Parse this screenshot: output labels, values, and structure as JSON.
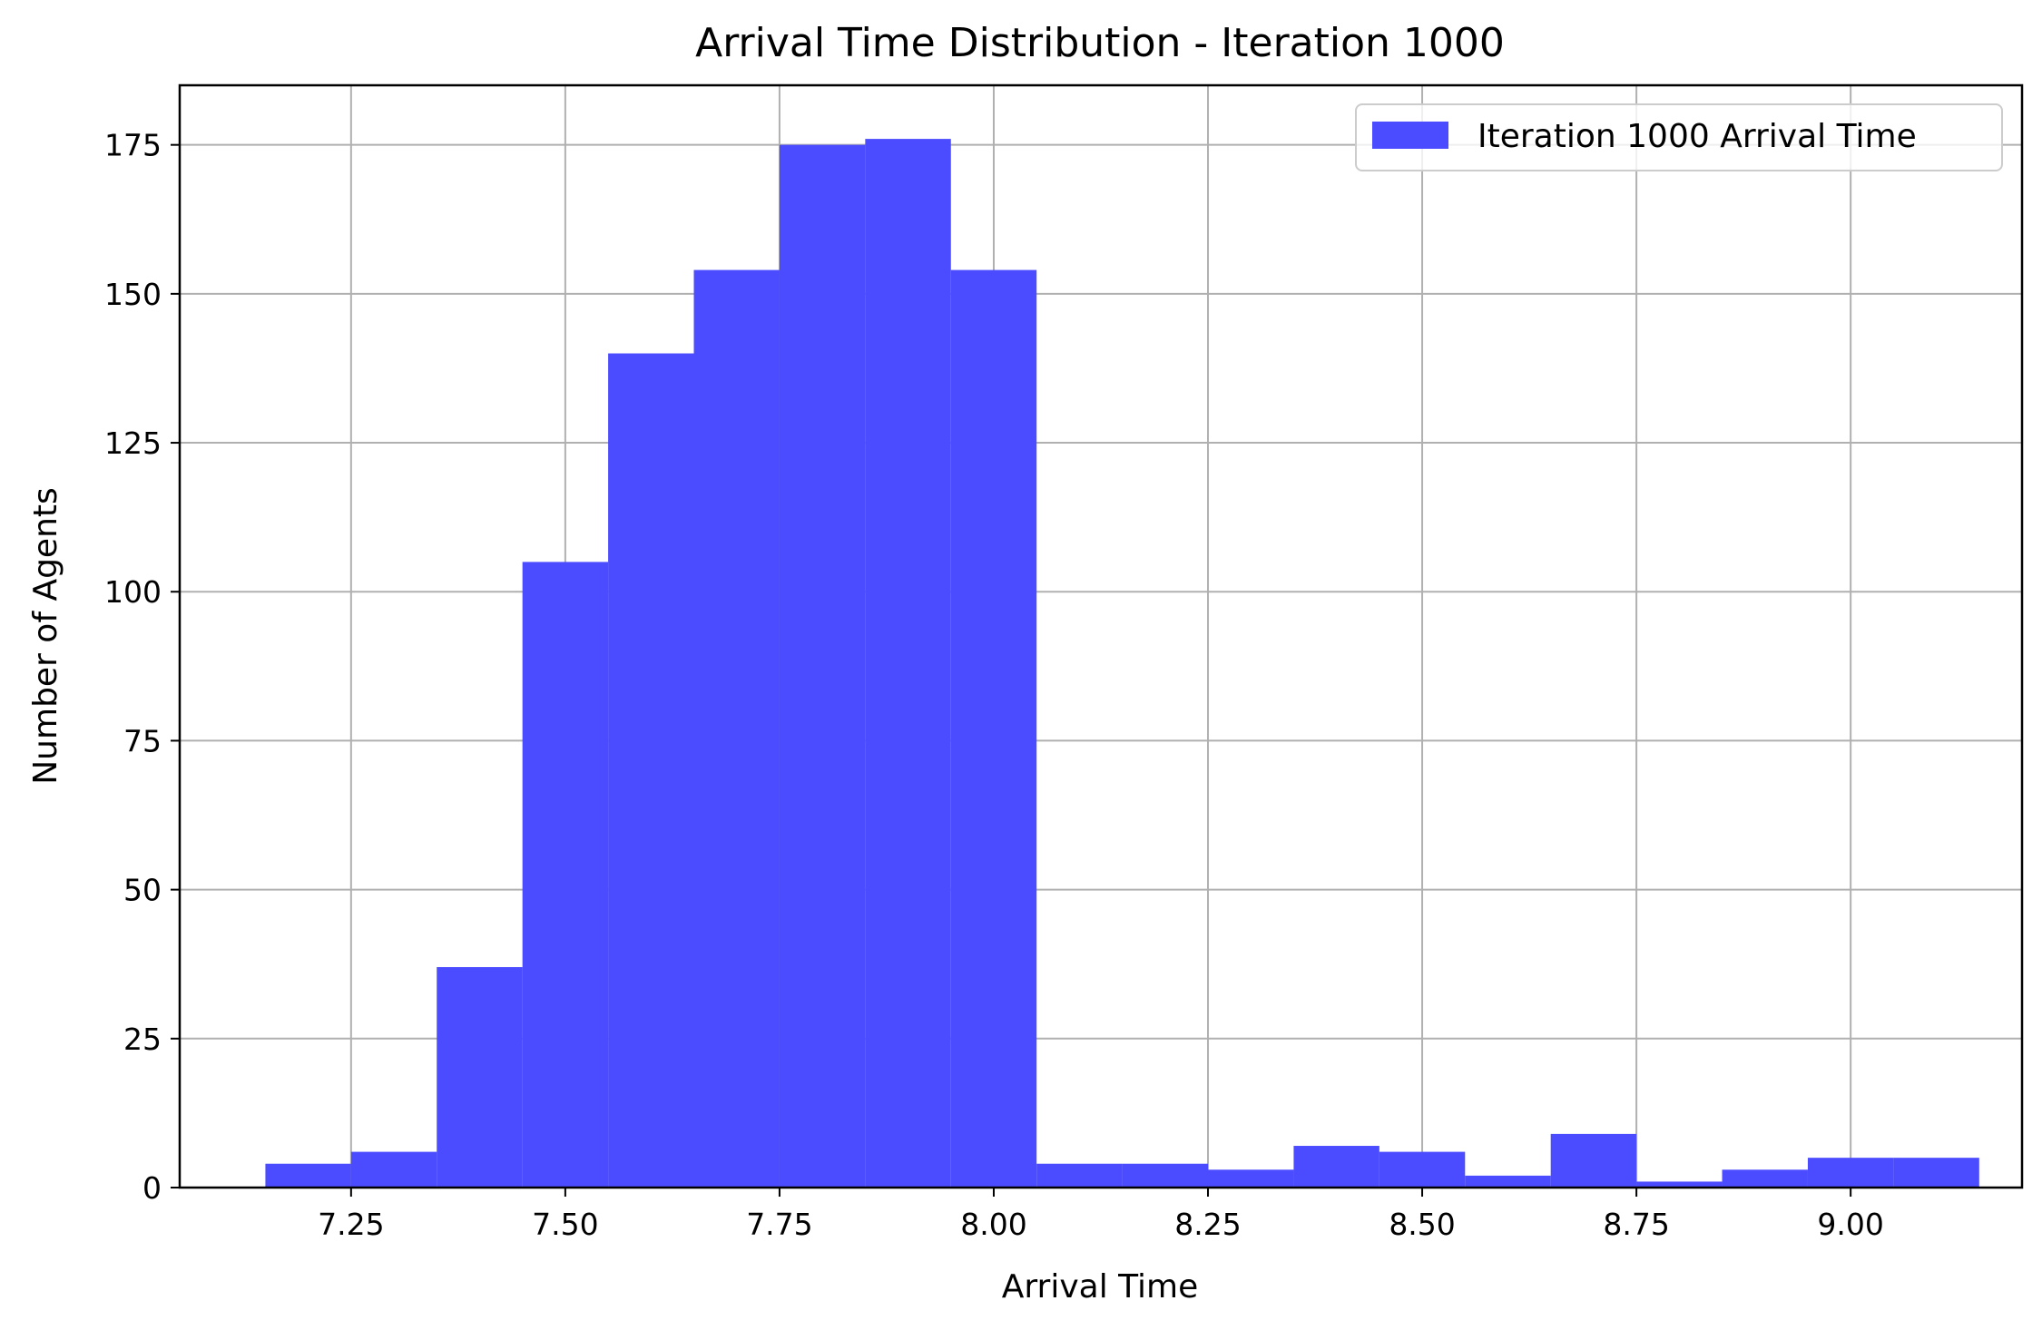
{
  "chart_data": {
    "type": "bar",
    "title": "Arrival Time Distribution - Iteration 1000",
    "xlabel": "Arrival Time",
    "ylabel": "Number of Agents",
    "xlim": [
      7.05,
      9.2
    ],
    "ylim": [
      0,
      185
    ],
    "xticks": [
      {
        "value": 7.25,
        "label": "7.25"
      },
      {
        "value": 7.5,
        "label": "7.50"
      },
      {
        "value": 7.75,
        "label": "7.75"
      },
      {
        "value": 8.0,
        "label": "8.00"
      },
      {
        "value": 8.25,
        "label": "8.25"
      },
      {
        "value": 8.5,
        "label": "8.50"
      },
      {
        "value": 8.75,
        "label": "8.75"
      },
      {
        "value": 9.0,
        "label": "9.00"
      }
    ],
    "yticks": [
      {
        "value": 0,
        "label": "0"
      },
      {
        "value": 25,
        "label": "25"
      },
      {
        "value": 50,
        "label": "50"
      },
      {
        "value": 75,
        "label": "75"
      },
      {
        "value": 100,
        "label": "100"
      },
      {
        "value": 125,
        "label": "125"
      },
      {
        "value": 150,
        "label": "150"
      },
      {
        "value": 175,
        "label": "175"
      }
    ],
    "grid": true,
    "legend_position": "top-right",
    "bar_color": "#4b4bff",
    "series": [
      {
        "name": "Iteration 1000 Arrival Time",
        "bins": [
          {
            "x0": 7.15,
            "x1": 7.25,
            "value": 4
          },
          {
            "x0": 7.25,
            "x1": 7.35,
            "value": 6
          },
          {
            "x0": 7.35,
            "x1": 7.45,
            "value": 37
          },
          {
            "x0": 7.45,
            "x1": 7.55,
            "value": 105
          },
          {
            "x0": 7.55,
            "x1": 7.65,
            "value": 140
          },
          {
            "x0": 7.65,
            "x1": 7.75,
            "value": 154
          },
          {
            "x0": 7.75,
            "x1": 7.85,
            "value": 175
          },
          {
            "x0": 7.85,
            "x1": 7.95,
            "value": 176
          },
          {
            "x0": 7.95,
            "x1": 8.05,
            "value": 154
          },
          {
            "x0": 8.05,
            "x1": 8.15,
            "value": 4
          },
          {
            "x0": 8.15,
            "x1": 8.25,
            "value": 4
          },
          {
            "x0": 8.25,
            "x1": 8.35,
            "value": 3
          },
          {
            "x0": 8.35,
            "x1": 8.45,
            "value": 7
          },
          {
            "x0": 8.45,
            "x1": 8.55,
            "value": 6
          },
          {
            "x0": 8.55,
            "x1": 8.65,
            "value": 2
          },
          {
            "x0": 8.65,
            "x1": 8.75,
            "value": 9
          },
          {
            "x0": 8.75,
            "x1": 8.85,
            "value": 1
          },
          {
            "x0": 8.85,
            "x1": 8.95,
            "value": 3
          },
          {
            "x0": 8.95,
            "x1": 9.05,
            "value": 5
          },
          {
            "x0": 9.05,
            "x1": 9.15,
            "value": 5
          }
        ]
      }
    ]
  }
}
